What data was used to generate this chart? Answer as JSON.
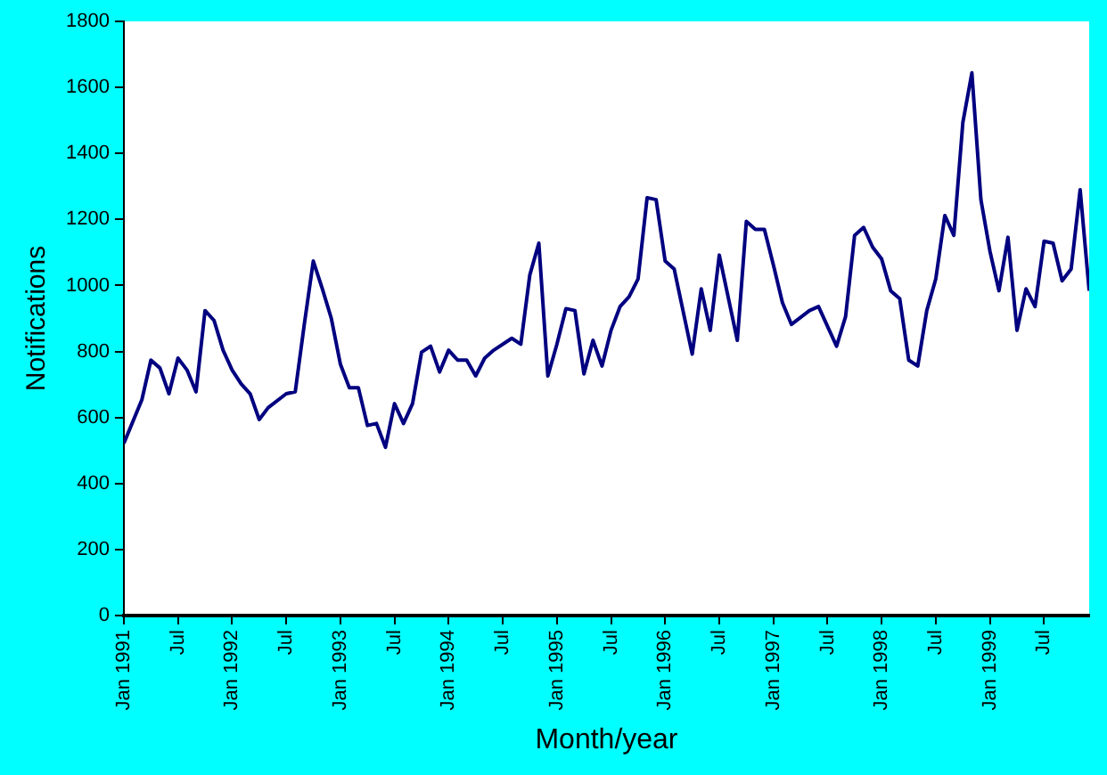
{
  "chart_data": {
    "type": "line",
    "xlabel": "Month/year",
    "ylabel": "Notifications",
    "x": [
      "1991-01",
      "1991-03",
      "1991-04",
      "1991-05",
      "1991-06",
      "1991-07",
      "1991-08",
      "1991-09",
      "1991-10",
      "1991-11",
      "1991-12",
      "1992-01",
      "1992-02",
      "1992-03",
      "1992-04",
      "1992-05",
      "1992-07",
      "1992-08",
      "1992-09",
      "1992-10",
      "1992-11",
      "1992-12",
      "1993-01",
      "1993-02",
      "1993-03",
      "1993-04",
      "1993-05",
      "1993-06",
      "1993-07",
      "1993-08",
      "1993-09",
      "1993-10",
      "1993-11",
      "1993-12",
      "1994-01",
      "1994-02",
      "1994-03",
      "1994-04",
      "1994-05",
      "1994-06",
      "1994-08",
      "1994-09",
      "1994-10",
      "1994-11",
      "1994-12",
      "1995-01",
      "1995-02",
      "1995-03",
      "1995-04",
      "1995-05",
      "1995-06",
      "1995-07",
      "1995-08",
      "1995-09",
      "1995-10",
      "1995-11",
      "1995-12",
      "1996-01",
      "1996-02",
      "1996-04",
      "1996-05",
      "1996-06",
      "1996-07",
      "1996-09",
      "1996-10",
      "1996-11",
      "1996-12",
      "1997-01",
      "1997-02",
      "1997-03",
      "1997-05",
      "1997-06",
      "1997-08",
      "1997-09",
      "1997-10",
      "1997-11",
      "1997-12",
      "1998-01",
      "1998-02",
      "1998-03",
      "1998-04",
      "1998-05",
      "1998-06",
      "1998-07",
      "1998-08",
      "1998-09",
      "1998-10",
      "1998-11",
      "1998-12",
      "1999-01",
      "1999-02",
      "1999-03",
      "1999-04",
      "1999-05",
      "1999-06",
      "1999-07",
      "1999-08",
      "1999-09",
      "1999-10",
      "1999-11",
      "1999-12"
    ],
    "series": [
      {
        "color": "#000080",
        "values": [
          522,
          654,
          774,
          750,
          672,
          780,
          744,
          678,
          924,
          894,
          804,
          744,
          702,
          672,
          594,
          630,
          672,
          678,
          882,
          1074,
          990,
          900,
          762,
          690,
          690,
          576,
          582,
          510,
          642,
          582,
          642,
          798,
          816,
          738,
          804,
          774,
          774,
          726,
          780,
          804,
          840,
          822,
          1032,
          1128,
          726,
          822,
          930,
          924,
          732,
          834,
          756,
          864,
          936,
          966,
          1020,
          1266,
          1260,
          1074,
          1050,
          792,
          990,
          864,
          1092,
          834,
          1194,
          1170,
          1170,
          1062,
          948,
          882,
          924,
          936,
          816,
          906,
          1152,
          1176,
          1116,
          1080,
          984,
          960,
          774,
          756,
          924,
          1020,
          1212,
          1152,
          1494,
          1644,
          1260,
          1104,
          984,
          1146,
          864,
          990,
          936,
          1134,
          1128,
          1014,
          1050,
          1290,
          984
        ]
      }
    ],
    "xlim": [
      "1991-01",
      "1999-12"
    ],
    "xticks": [
      {
        "value": "1991-01",
        "label": "Jan 1991"
      },
      {
        "value": "1991-07",
        "label": "Jul"
      },
      {
        "value": "1992-01",
        "label": "Jan 1992"
      },
      {
        "value": "1992-07",
        "label": "Jul"
      },
      {
        "value": "1993-01",
        "label": "Jan 1993"
      },
      {
        "value": "1993-07",
        "label": "Jul"
      },
      {
        "value": "1994-01",
        "label": "Jan 1994"
      },
      {
        "value": "1994-07",
        "label": "Jul"
      },
      {
        "value": "1995-01",
        "label": "Jan 1995"
      },
      {
        "value": "1995-07",
        "label": "Jul"
      },
      {
        "value": "1996-01",
        "label": "Jan 1996"
      },
      {
        "value": "1996-07",
        "label": "Jul"
      },
      {
        "value": "1997-01",
        "label": "Jan 1997"
      },
      {
        "value": "1997-07",
        "label": "Jul"
      },
      {
        "value": "1998-01",
        "label": "Jan 1998"
      },
      {
        "value": "1998-07",
        "label": "Jul"
      },
      {
        "value": "1999-01",
        "label": "Jan 1999"
      },
      {
        "value": "1999-07",
        "label": "Jul"
      }
    ],
    "ylim": [
      0,
      1800
    ],
    "yticks": [
      0,
      200,
      400,
      600,
      800,
      1000,
      1200,
      1400,
      1600,
      1800
    ],
    "grid": false,
    "legend": false,
    "marker": "none",
    "line_style": "solid"
  }
}
